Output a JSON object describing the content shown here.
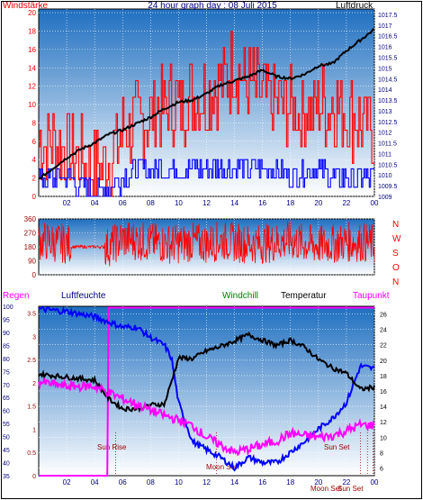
{
  "colors": {
    "frame": "#000000",
    "sky_top": "#1f6fc0",
    "sky_bottom": "#ffffff",
    "red": "#ff0000",
    "blue": "#0000ff",
    "black": "#000000",
    "magenta": "#ff00ff",
    "green": "#008000",
    "dark_red": "#990000",
    "dark_blue": "#000080"
  },
  "chart_data": [
    {
      "type": "line",
      "title": "24 hour graph day : 08 Juli 2015",
      "left_label": "Windstärke",
      "right_label": "Luftdruck",
      "x_ticks": [
        "02",
        "04",
        "06",
        "08",
        "10",
        "12",
        "14",
        "16",
        "18",
        "20",
        "22",
        "00"
      ],
      "left_ticks": [
        0,
        2,
        4,
        6,
        8,
        10,
        12,
        14,
        16,
        18,
        20
      ],
      "right_ticks": [
        "1009",
        "1009.5",
        "1010",
        "1010.5",
        "1011",
        "1011.5",
        "1012",
        "1012.5",
        "1013",
        "1013.5",
        "1014",
        "1014.5",
        "1015",
        "1015.5",
        "1016",
        "1016.5",
        "1017",
        "1017.5"
      ],
      "ylim_left": [
        0,
        20.4
      ],
      "ylim_right": [
        1009,
        1017.75
      ],
      "series": [
        {
          "name": "Windstärke",
          "axis": "left",
          "color": "#ff0000",
          "x": [
            0,
            1,
            2,
            3,
            4,
            5,
            6,
            7,
            8,
            9,
            10,
            11,
            12,
            13,
            14,
            15,
            16,
            17,
            18,
            19,
            20,
            21,
            22,
            23,
            24
          ],
          "y": [
            6,
            6,
            5,
            4,
            3,
            4,
            7,
            8,
            9,
            10,
            10,
            11,
            11,
            13,
            14,
            12,
            11,
            10,
            10,
            9,
            10,
            10,
            9,
            8,
            7
          ]
        },
        {
          "name": "Böen",
          "axis": "left",
          "color": "#0000ff",
          "x": [
            0,
            1,
            2,
            3,
            4,
            5,
            6,
            7,
            8,
            9,
            10,
            11,
            12,
            13,
            14,
            15,
            16,
            17,
            18,
            19,
            20,
            21,
            22,
            23,
            24
          ],
          "y": [
            2,
            2,
            2,
            1,
            0,
            1,
            2,
            3,
            3,
            3,
            3,
            3,
            3,
            3,
            3,
            3,
            3,
            3,
            2,
            3,
            3,
            2,
            2,
            2,
            2
          ]
        },
        {
          "name": "Luftdruck",
          "axis": "right",
          "color": "#000000",
          "x": [
            0,
            1,
            2,
            3,
            4,
            5,
            6,
            7,
            8,
            9,
            10,
            11,
            12,
            13,
            14,
            15,
            16,
            17,
            18,
            19,
            20,
            21,
            22,
            23,
            24
          ],
          "y": [
            1009.8,
            1010.3,
            1010.8,
            1011.2,
            1011.5,
            1011.9,
            1012.1,
            1012.4,
            1012.7,
            1013.1,
            1013.4,
            1013.5,
            1013.8,
            1014.2,
            1014.4,
            1014.6,
            1014.9,
            1014.6,
            1014.5,
            1014.7,
            1015.1,
            1015.2,
            1015.8,
            1016.3,
            1016.8
          ]
        }
      ]
    },
    {
      "type": "scatter",
      "left_ticks": [
        0,
        90,
        180,
        270,
        360
      ],
      "right_labels": [
        "N",
        "W",
        "S",
        "O",
        "N"
      ],
      "ylim": [
        0,
        360
      ],
      "series": [
        {
          "name": "Windrichtung",
          "color": "#ff0000",
          "x": [
            0,
            1,
            2,
            3,
            4,
            5,
            6,
            7,
            8,
            9,
            10,
            11,
            12,
            13,
            14,
            15,
            16,
            17,
            18,
            19,
            20,
            21,
            22,
            23,
            24
          ],
          "y": [
            220,
            210,
            200,
            190,
            180,
            180,
            230,
            220,
            210,
            200,
            200,
            210,
            200,
            220,
            210,
            200,
            200,
            210,
            220,
            200,
            190,
            200,
            210,
            210,
            200
          ]
        }
      ]
    },
    {
      "type": "line",
      "legend": [
        "Regen",
        "Luftfeuchte",
        "Windchill",
        "Temperatur",
        "Taupunkt"
      ],
      "regen_ticks": [
        "0",
        "0.5",
        "1",
        "1.5",
        "2",
        "2.5",
        "3",
        "3.5"
      ],
      "humidity_ticks": [
        "35",
        "40",
        "45",
        "50",
        "55",
        "60",
        "65",
        "70",
        "75",
        "80",
        "85",
        "90",
        "95",
        "100"
      ],
      "temp_ticks": [
        "6",
        "8",
        "10",
        "12",
        "14",
        "16",
        "18",
        "20",
        "22",
        "24",
        "26"
      ],
      "x_ticks": [
        "02",
        "04",
        "06",
        "08",
        "10",
        "12",
        "14",
        "16",
        "18",
        "20",
        "22",
        "00"
      ],
      "ylim_regen": [
        0,
        3.65
      ],
      "ylim_humidity": [
        35,
        100
      ],
      "ylim_temp": [
        5,
        27
      ],
      "annotations": [
        "Sun Rise",
        "Moon Set",
        "Sun Set",
        "Moon Set",
        "Sun Set"
      ],
      "series": [
        {
          "name": "Regen",
          "axis": "regen",
          "color": "#ff00ff",
          "x": [
            0,
            4.2,
            4.9,
            5,
            24
          ],
          "y": [
            0,
            0,
            0,
            3.62,
            3.62
          ]
        },
        {
          "name": "Luftfeuchte",
          "axis": "humidity",
          "color": "#0000ff",
          "x": [
            0,
            2,
            4,
            6,
            7,
            8,
            9,
            9.5,
            10,
            11,
            12,
            13,
            14,
            15,
            16,
            17,
            18,
            19,
            20,
            21,
            22,
            23,
            24
          ],
          "y": [
            99,
            98,
            96,
            92,
            92,
            88,
            85,
            80,
            63,
            48,
            45,
            42,
            38,
            42,
            40,
            40,
            44,
            48,
            53,
            57,
            63,
            77,
            76
          ]
        },
        {
          "name": "Temperatur",
          "axis": "temp",
          "color": "#000000",
          "x": [
            0,
            2,
            4,
            5,
            6,
            7,
            8,
            9,
            10,
            11,
            12,
            13,
            14,
            15,
            16,
            17,
            18,
            19,
            20,
            21,
            22,
            23,
            24
          ],
          "y": [
            18.2,
            17.8,
            17.4,
            15,
            13.7,
            13.7,
            14.2,
            14.3,
            20.3,
            20.2,
            21.2,
            21.8,
            22.5,
            23.3,
            22.6,
            21.9,
            22.6,
            21.7,
            20.1,
            19,
            18.3,
            16.2,
            16.5
          ]
        },
        {
          "name": "Taupunkt",
          "axis": "temp",
          "color": "#ff00ff",
          "x": [
            0,
            2,
            4,
            6,
            8,
            9,
            10,
            11,
            12,
            13,
            14,
            15,
            16,
            17,
            18,
            19,
            20,
            21,
            22,
            23,
            24
          ],
          "y": [
            17.2,
            16.6,
            16.6,
            15,
            13.5,
            12.8,
            12.2,
            11.5,
            10,
            9,
            8,
            8.5,
            9,
            9.5,
            10.5,
            10.2,
            10,
            10.2,
            10.8,
            11.6,
            11.5
          ]
        }
      ]
    }
  ]
}
